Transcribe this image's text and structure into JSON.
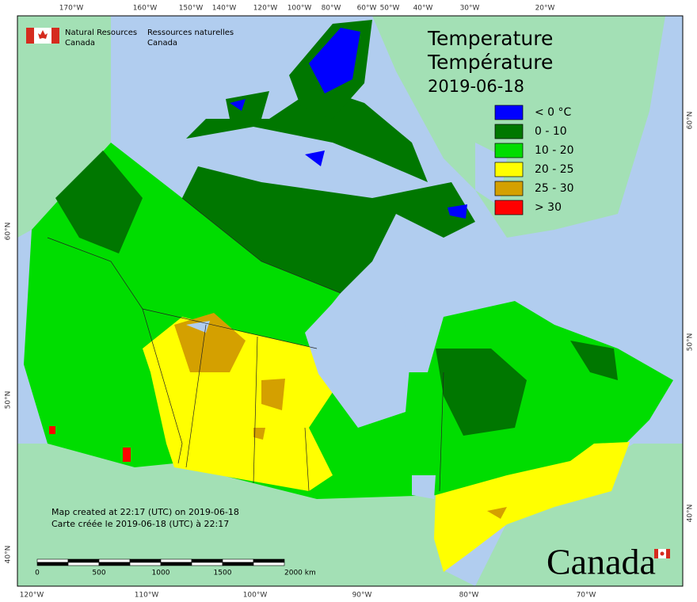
{
  "header": {
    "agency_en": "Natural Resources",
    "country_en": "Canada",
    "agency_fr": "Ressources naturelles",
    "country_fr": "Canada"
  },
  "title": {
    "line1": "Temperature",
    "line2": "Température",
    "date": "2019-06-18"
  },
  "legend": [
    {
      "label": "< 0 °C",
      "color": "#0000ff"
    },
    {
      "label": "0 - 10",
      "color": "#007700"
    },
    {
      "label": "10 - 20",
      "color": "#00dd00"
    },
    {
      "label": "20 - 25",
      "color": "#ffff00"
    },
    {
      "label": "25 - 30",
      "color": "#d4a000"
    },
    {
      "label": "> 30",
      "color": "#ff0000"
    }
  ],
  "graticule": {
    "top": [
      "170°W",
      "160°W",
      "150°W",
      "140°W",
      "120°W",
      "100°W",
      "80°W",
      "60°W",
      "50°W",
      "40°W",
      "30°W",
      "20°W"
    ],
    "bottom": [
      "120°W",
      "110°W",
      "100°W",
      "90°W",
      "80°W",
      "70°W"
    ],
    "left": [
      "60°N",
      "50°N",
      "40°N"
    ],
    "right": [
      "60°N",
      "50°N",
      "40°N"
    ]
  },
  "credits": [
    "Map created at 22:17 (UTC) on 2019-06-18",
    "Carte créée le 2019-06-18 (UTC) à 22:17"
  ],
  "scale_bar": {
    "labels": [
      "0",
      "500",
      "1000",
      "1500",
      "2000 km"
    ]
  },
  "wordmark": "Canada"
}
